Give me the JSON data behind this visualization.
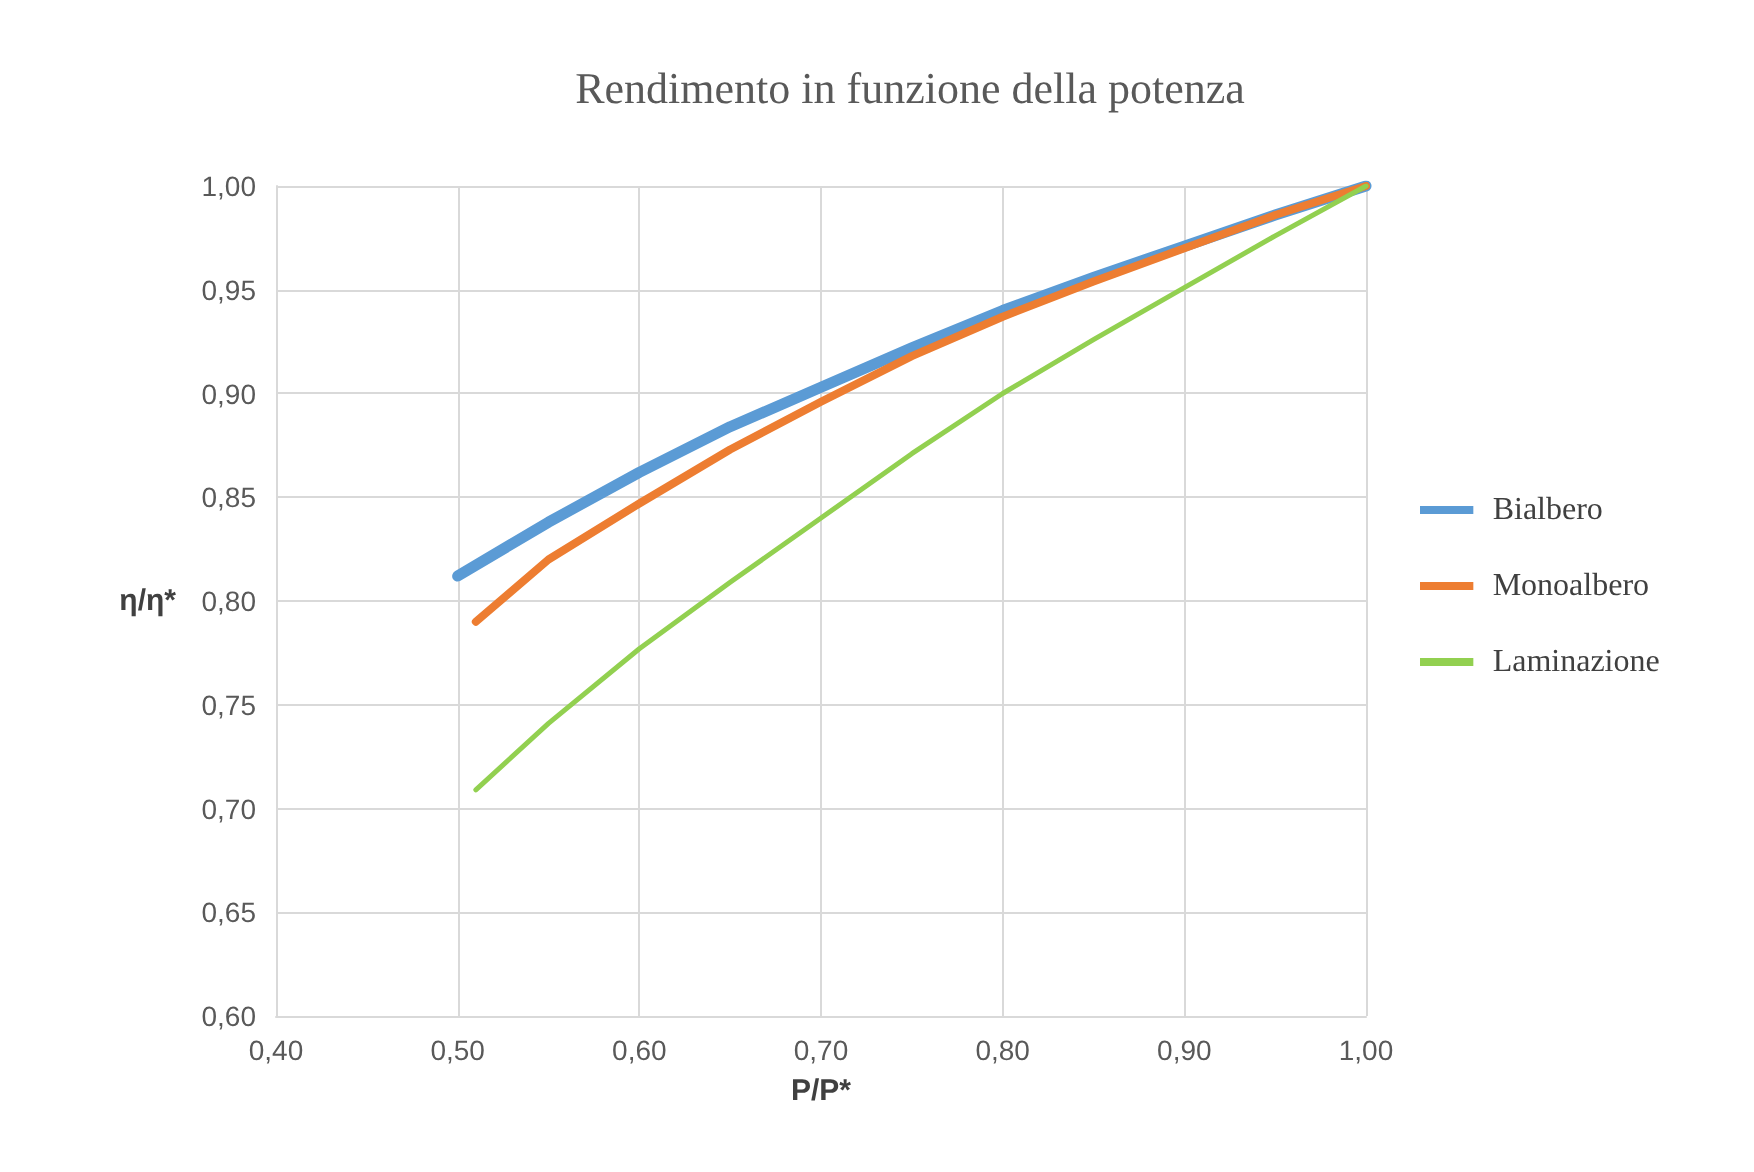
{
  "chart_data": {
    "type": "line",
    "title": "Rendimento in funzione della potenza",
    "xlabel": "P/P*",
    "ylabel": "η/η*",
    "series": [
      {
        "name": "Bialbero",
        "color": "#5b9bd5",
        "x": [
          0.5,
          0.55,
          0.6,
          0.65,
          0.7,
          0.75,
          0.8,
          0.85,
          0.9,
          0.95,
          1.0
        ],
        "values": [
          0.812,
          0.838,
          0.862,
          0.884,
          0.903,
          0.922,
          0.94,
          0.956,
          0.971,
          0.986,
          1.0
        ]
      },
      {
        "name": "Monoalbero",
        "color": "#ed7d31",
        "x": [
          0.51,
          0.55,
          0.6,
          0.65,
          0.7,
          0.75,
          0.8,
          0.85,
          0.9,
          0.95,
          1.0
        ],
        "values": [
          0.79,
          0.82,
          0.847,
          0.873,
          0.896,
          0.918,
          0.937,
          0.954,
          0.97,
          0.986,
          1.0
        ]
      },
      {
        "name": "Laminazione",
        "color": "#92d050",
        "x": [
          0.51,
          0.55,
          0.6,
          0.65,
          0.7,
          0.75,
          0.8,
          0.85,
          0.9,
          0.95,
          1.0
        ],
        "values": [
          0.709,
          0.741,
          0.777,
          0.809,
          0.84,
          0.871,
          0.9,
          0.926,
          0.951,
          0.976,
          1.0
        ]
      }
    ],
    "xlim": [
      0.4,
      1.0
    ],
    "xticks": [
      {
        "value": 0.4,
        "label": "0,40"
      },
      {
        "value": 0.5,
        "label": "0,50"
      },
      {
        "value": 0.6,
        "label": "0,60"
      },
      {
        "value": 0.7,
        "label": "0,70"
      },
      {
        "value": 0.8,
        "label": "0,80"
      },
      {
        "value": 0.9,
        "label": "0,90"
      },
      {
        "value": 1.0,
        "label": "1,00"
      }
    ],
    "ylim": [
      0.6,
      1.0
    ],
    "yticks": [
      {
        "value": 0.6,
        "label": "0,60"
      },
      {
        "value": 0.65,
        "label": "0,65"
      },
      {
        "value": 0.7,
        "label": "0,70"
      },
      {
        "value": 0.75,
        "label": "0,75"
      },
      {
        "value": 0.8,
        "label": "0,80"
      },
      {
        "value": 0.85,
        "label": "0,85"
      },
      {
        "value": 0.9,
        "label": "0,90"
      },
      {
        "value": 0.95,
        "label": "0,95"
      },
      {
        "value": 1.0,
        "label": "1,00"
      }
    ],
    "grid": true,
    "legend": "right",
    "marker": "none",
    "line_style": "solid"
  }
}
